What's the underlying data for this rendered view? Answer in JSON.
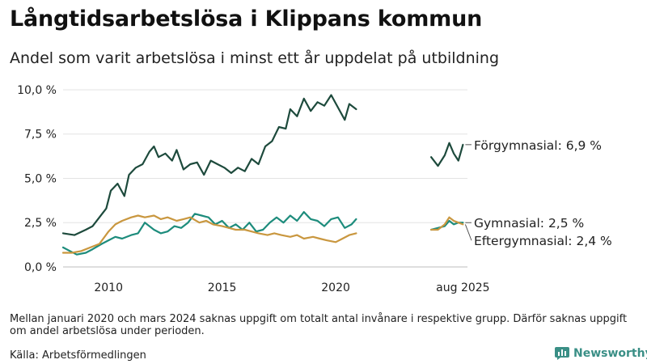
{
  "title": "Långtidsarbetslösa i Klippans kommun",
  "subtitle": "Andel som varit arbetslösa i minst ett år uppdelat på utbildning",
  "note": "Mellan januari 2020 och mars 2024 saknas uppgift om totalt antal invånare i respektive grupp. Därför saknas uppgift om andel arbetslösa under perioden.",
  "source": "Källa: Arbetsförmedlingen",
  "brand": "Newsworthy",
  "chart_data": {
    "type": "line",
    "ylim": [
      0,
      10.5
    ],
    "y_ticks": [
      0,
      2.5,
      5,
      7.5,
      10
    ],
    "y_tick_labels": [
      "0,0 %",
      "2,5 %",
      "5,0 %",
      "7,5 %",
      "10,0 %"
    ],
    "x_ticks": [
      {
        "value": 2010,
        "label": "2010"
      },
      {
        "value": 2015,
        "label": "2015"
      },
      {
        "value": 2020,
        "label": "2020"
      },
      {
        "value": 2025.6,
        "label": "aug 2025"
      }
    ],
    "grid": true,
    "series": [
      {
        "name": "Förgymnasial",
        "end_label": "Förgymnasial: 6,9 %",
        "color": "#1d4a3c",
        "segments": [
          {
            "x": [
              2008.0,
              2008.5,
              2009.0,
              2009.3,
              2009.6,
              2009.9,
              2010.1,
              2010.4,
              2010.7,
              2010.9,
              2011.2,
              2011.5,
              2011.8,
              2012.0,
              2012.2,
              2012.5,
              2012.8,
              2013.0,
              2013.3,
              2013.6,
              2013.9,
              2014.2,
              2014.5,
              2014.8,
              2015.1,
              2015.4,
              2015.7,
              2016.0,
              2016.3,
              2016.6,
              2016.9,
              2017.2,
              2017.5,
              2017.8,
              2018.0,
              2018.3,
              2018.6,
              2018.9,
              2019.2,
              2019.5,
              2019.8,
              2020.1,
              2020.4,
              2020.6,
              2020.9
            ],
            "y": [
              1.9,
              1.8,
              2.1,
              2.3,
              2.8,
              3.3,
              4.3,
              4.7,
              4.0,
              5.2,
              5.6,
              5.8,
              6.5,
              6.8,
              6.2,
              6.4,
              6.0,
              6.6,
              5.5,
              5.8,
              5.9,
              5.2,
              6.0,
              5.8,
              5.6,
              5.3,
              5.6,
              5.4,
              6.1,
              5.8,
              6.8,
              7.1,
              7.9,
              7.8,
              8.9,
              8.5,
              9.5,
              8.8,
              9.3,
              9.1,
              9.7,
              9.0,
              8.3,
              9.2,
              8.9
            ]
          },
          {
            "x": [
              2024.2,
              2024.5,
              2024.8,
              2025.0,
              2025.2,
              2025.4,
              2025.6
            ],
            "y": [
              6.2,
              5.7,
              6.3,
              7.0,
              6.4,
              6.0,
              6.9
            ]
          }
        ]
      },
      {
        "name": "Gymnasial",
        "end_label": "Gymnasial: 2,5 %",
        "color": "#1d8c7c",
        "segments": [
          {
            "x": [
              2008.0,
              2008.3,
              2008.6,
              2009.0,
              2009.3,
              2009.7,
              2010.0,
              2010.3,
              2010.6,
              2011.0,
              2011.3,
              2011.6,
              2012.0,
              2012.3,
              2012.6,
              2012.9,
              2013.2,
              2013.5,
              2013.8,
              2014.1,
              2014.4,
              2014.7,
              2015.0,
              2015.3,
              2015.6,
              2015.9,
              2016.2,
              2016.5,
              2016.8,
              2017.1,
              2017.4,
              2017.7,
              2018.0,
              2018.3,
              2018.6,
              2018.9,
              2019.2,
              2019.5,
              2019.8,
              2020.1,
              2020.4,
              2020.7,
              2020.9
            ],
            "y": [
              1.1,
              0.9,
              0.7,
              0.8,
              1.0,
              1.3,
              1.5,
              1.7,
              1.6,
              1.8,
              1.9,
              2.5,
              2.1,
              1.9,
              2.0,
              2.3,
              2.2,
              2.5,
              3.0,
              2.9,
              2.8,
              2.4,
              2.6,
              2.2,
              2.4,
              2.1,
              2.5,
              2.0,
              2.1,
              2.5,
              2.8,
              2.5,
              2.9,
              2.6,
              3.1,
              2.7,
              2.6,
              2.3,
              2.7,
              2.8,
              2.2,
              2.4,
              2.7
            ]
          },
          {
            "x": [
              2024.2,
              2024.5,
              2024.8,
              2025.0,
              2025.2,
              2025.4,
              2025.6
            ],
            "y": [
              2.1,
              2.2,
              2.3,
              2.6,
              2.4,
              2.5,
              2.5
            ]
          }
        ]
      },
      {
        "name": "Eftergymnasial",
        "end_label": "Eftergymnasial: 2,4 %",
        "color": "#c9973f",
        "segments": [
          {
            "x": [
              2008.0,
              2008.4,
              2008.8,
              2009.2,
              2009.6,
              2010.0,
              2010.3,
              2010.6,
              2011.0,
              2011.3,
              2011.6,
              2012.0,
              2012.3,
              2012.6,
              2013.0,
              2013.3,
              2013.6,
              2014.0,
              2014.3,
              2014.6,
              2015.0,
              2015.3,
              2015.6,
              2016.0,
              2016.3,
              2016.6,
              2017.0,
              2017.3,
              2017.6,
              2018.0,
              2018.3,
              2018.6,
              2019.0,
              2019.3,
              2019.6,
              2020.0,
              2020.3,
              2020.6,
              2020.9
            ],
            "y": [
              0.8,
              0.8,
              0.9,
              1.1,
              1.3,
              2.0,
              2.4,
              2.6,
              2.8,
              2.9,
              2.8,
              2.9,
              2.7,
              2.8,
              2.6,
              2.7,
              2.8,
              2.5,
              2.6,
              2.4,
              2.3,
              2.2,
              2.1,
              2.1,
              2.0,
              1.9,
              1.8,
              1.9,
              1.8,
              1.7,
              1.8,
              1.6,
              1.7,
              1.6,
              1.5,
              1.4,
              1.6,
              1.8,
              1.9
            ]
          },
          {
            "x": [
              2024.2,
              2024.5,
              2024.8,
              2025.0,
              2025.2,
              2025.4,
              2025.6
            ],
            "y": [
              2.1,
              2.1,
              2.4,
              2.8,
              2.6,
              2.5,
              2.4
            ]
          }
        ]
      }
    ]
  }
}
